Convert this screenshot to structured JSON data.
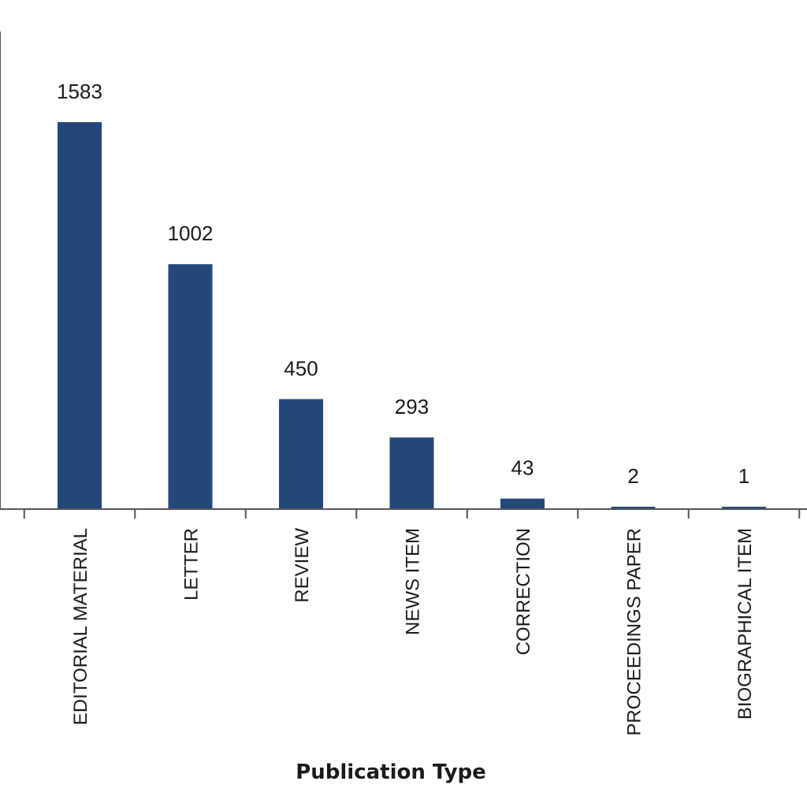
{
  "chart_data": {
    "type": "bar",
    "xlabel": "Publication Type",
    "ylabel": "",
    "categories": [
      "EDITORIAL MATERIAL",
      "LETTER",
      "REVIEW",
      "NEWS ITEM",
      "CORRECTION",
      "PROCEEDINGS PAPER",
      "BIOGRAPHICAL ITEM"
    ],
    "values": [
      1583,
      1002,
      450,
      293,
      43,
      2,
      1
    ],
    "data_labels": [
      "1583",
      "1002",
      "450",
      "293",
      "43",
      "2",
      "1"
    ],
    "ylim": [
      0,
      1600
    ],
    "grid": false,
    "legend": "none",
    "bar_color": "#24477A"
  }
}
